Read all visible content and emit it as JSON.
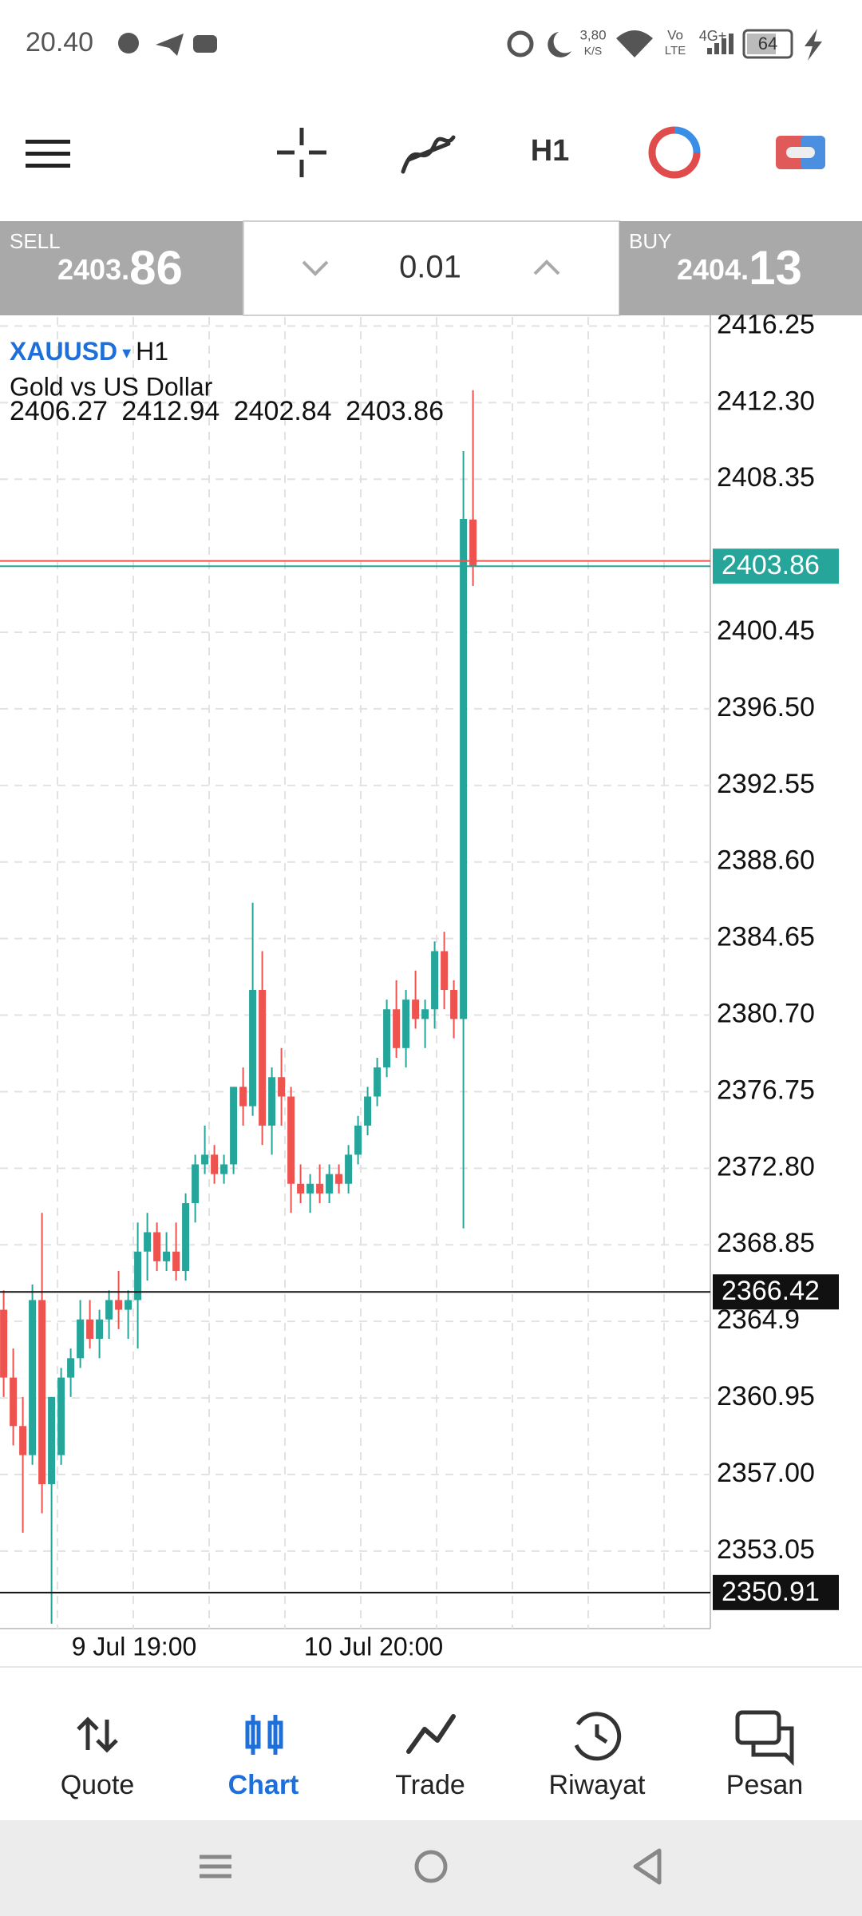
{
  "status_bar": {
    "time": "20.40",
    "speed_value": "3,80",
    "speed_unit": "K/S",
    "volte_top": "Vo",
    "volte_bottom": "LTE",
    "network": "4G+",
    "battery": "64"
  },
  "toolbar": {
    "timeframe": "H1"
  },
  "trade_panel": {
    "sell": {
      "label": "SELL",
      "price": "2403.86"
    },
    "volume": "0.01",
    "buy": {
      "label": "BUY",
      "price": "2404.13"
    }
  },
  "chart": {
    "symbol": "XAUUSD",
    "timeframe": "H1",
    "description": "Gold vs US Dollar",
    "ylim": [
      2349.05,
      2416.72
    ],
    "yticks": [
      2416.25,
      {
        "value": 2412.3,
        "label": "2412.30"
      },
      2408.35,
      2400.45,
      {
        "value": 2396.5,
        "label": "2396.50"
      },
      2392.55,
      {
        "value": 2388.6,
        "label": "2388.60"
      },
      2384.65,
      {
        "value": 2380.7,
        "label": "2380.70"
      },
      2376.75,
      {
        "value": 2372.8,
        "label": "2372.80"
      },
      2368.85,
      2364.9,
      2360.95,
      {
        "value": 2357,
        "label": "2357.00"
      },
      2353.05
    ],
    "x_labels": [
      "9 Jul 19:00",
      "10 Jul 20:00"
    ],
    "levels": [
      2366.42,
      2350.91
    ],
    "candles": [
      [
        2365.5,
        2366.5,
        2361.0,
        2362.0
      ],
      [
        2362.0,
        2363.5,
        2358.5,
        2359.5
      ],
      [
        2359.5,
        2361.0,
        2354.0,
        2358.0
      ],
      [
        2358.0,
        2366.8,
        2357.5,
        2366.0
      ],
      [
        2366.0,
        2370.5,
        2355.0,
        2356.5
      ],
      [
        2356.5,
        2361.0,
        2349.3,
        2361.0
      ],
      [
        2358.0,
        2362.5,
        2357.5,
        2362.0
      ],
      [
        2362.0,
        2363.5,
        2361.0,
        2363.0
      ],
      [
        2363.0,
        2366.0,
        2362.5,
        2365.0
      ],
      [
        2365.0,
        2366.0,
        2363.5,
        2364.0
      ],
      [
        2364.0,
        2365.5,
        2363.0,
        2365.0
      ],
      [
        2365.0,
        2366.5,
        2364.0,
        2366.0
      ],
      [
        2366.0,
        2367.5,
        2364.5,
        2365.5
      ],
      [
        2365.5,
        2366.5,
        2364.0,
        2366.0
      ],
      [
        2366.0,
        2370.0,
        2363.5,
        2368.5
      ],
      [
        2368.5,
        2370.5,
        2367.0,
        2369.5
      ],
      [
        2369.5,
        2370.0,
        2367.5,
        2368.0
      ],
      [
        2368.0,
        2369.5,
        2367.5,
        2368.5
      ],
      [
        2368.5,
        2370.0,
        2367.0,
        2367.5
      ],
      [
        2367.5,
        2371.5,
        2367.0,
        2371.0
      ],
      [
        2371.0,
        2373.5,
        2370.0,
        2373.0
      ],
      [
        2373.0,
        2375.0,
        2372.5,
        2373.5
      ],
      [
        2373.5,
        2374.0,
        2372.0,
        2372.5
      ],
      [
        2372.5,
        2373.5,
        2372.0,
        2373.0
      ],
      [
        2373.0,
        2377.0,
        2372.5,
        2377.0
      ],
      [
        2377.0,
        2378.0,
        2375.0,
        2376.0
      ],
      [
        2376.0,
        2386.5,
        2375.5,
        2382.0
      ],
      [
        2382.0,
        2384.0,
        2374.0,
        2375.0
      ],
      [
        2375.0,
        2378.0,
        2373.5,
        2377.5
      ],
      [
        2377.5,
        2379.0,
        2375.0,
        2376.5
      ],
      [
        2376.5,
        2377.0,
        2370.5,
        2372.0
      ],
      [
        2372.0,
        2373.0,
        2371.0,
        2371.5
      ],
      [
        2371.5,
        2372.5,
        2370.5,
        2372.0
      ],
      [
        2372.0,
        2373.0,
        2371.0,
        2371.5
      ],
      [
        2371.5,
        2373.0,
        2371.0,
        2372.5
      ],
      [
        2372.5,
        2373.0,
        2371.5,
        2372.0
      ],
      [
        2372.0,
        2374.0,
        2371.5,
        2373.5
      ],
      [
        2373.5,
        2375.5,
        2373.0,
        2375.0
      ],
      [
        2375.0,
        2377.0,
        2374.5,
        2376.5
      ],
      [
        2376.5,
        2378.5,
        2376.0,
        2378.0
      ],
      [
        2378.0,
        2381.5,
        2377.5,
        2381.0
      ],
      [
        2381.0,
        2382.5,
        2378.5,
        2379.0
      ],
      [
        2379.0,
        2382.0,
        2378.0,
        2381.5
      ],
      [
        2381.5,
        2383.0,
        2380.0,
        2380.5
      ],
      [
        2380.5,
        2381.5,
        2379.0,
        2381.0
      ],
      [
        2381.0,
        2384.5,
        2380.0,
        2384.0
      ],
      [
        2384.0,
        2385.0,
        2381.0,
        2382.0
      ],
      [
        2382.0,
        2382.5,
        2379.5,
        2380.5
      ],
      [
        2380.5,
        2409.8,
        2369.7,
        2406.3
      ],
      [
        2406.27,
        2412.94,
        2402.84,
        2403.86
      ]
    ]
  },
  "bottom_nav": [
    {
      "label": "Quote"
    },
    {
      "label": "Chart",
      "active": true
    },
    {
      "label": "Trade"
    },
    {
      "label": "Riwayat"
    },
    {
      "label": "Pesan"
    }
  ]
}
